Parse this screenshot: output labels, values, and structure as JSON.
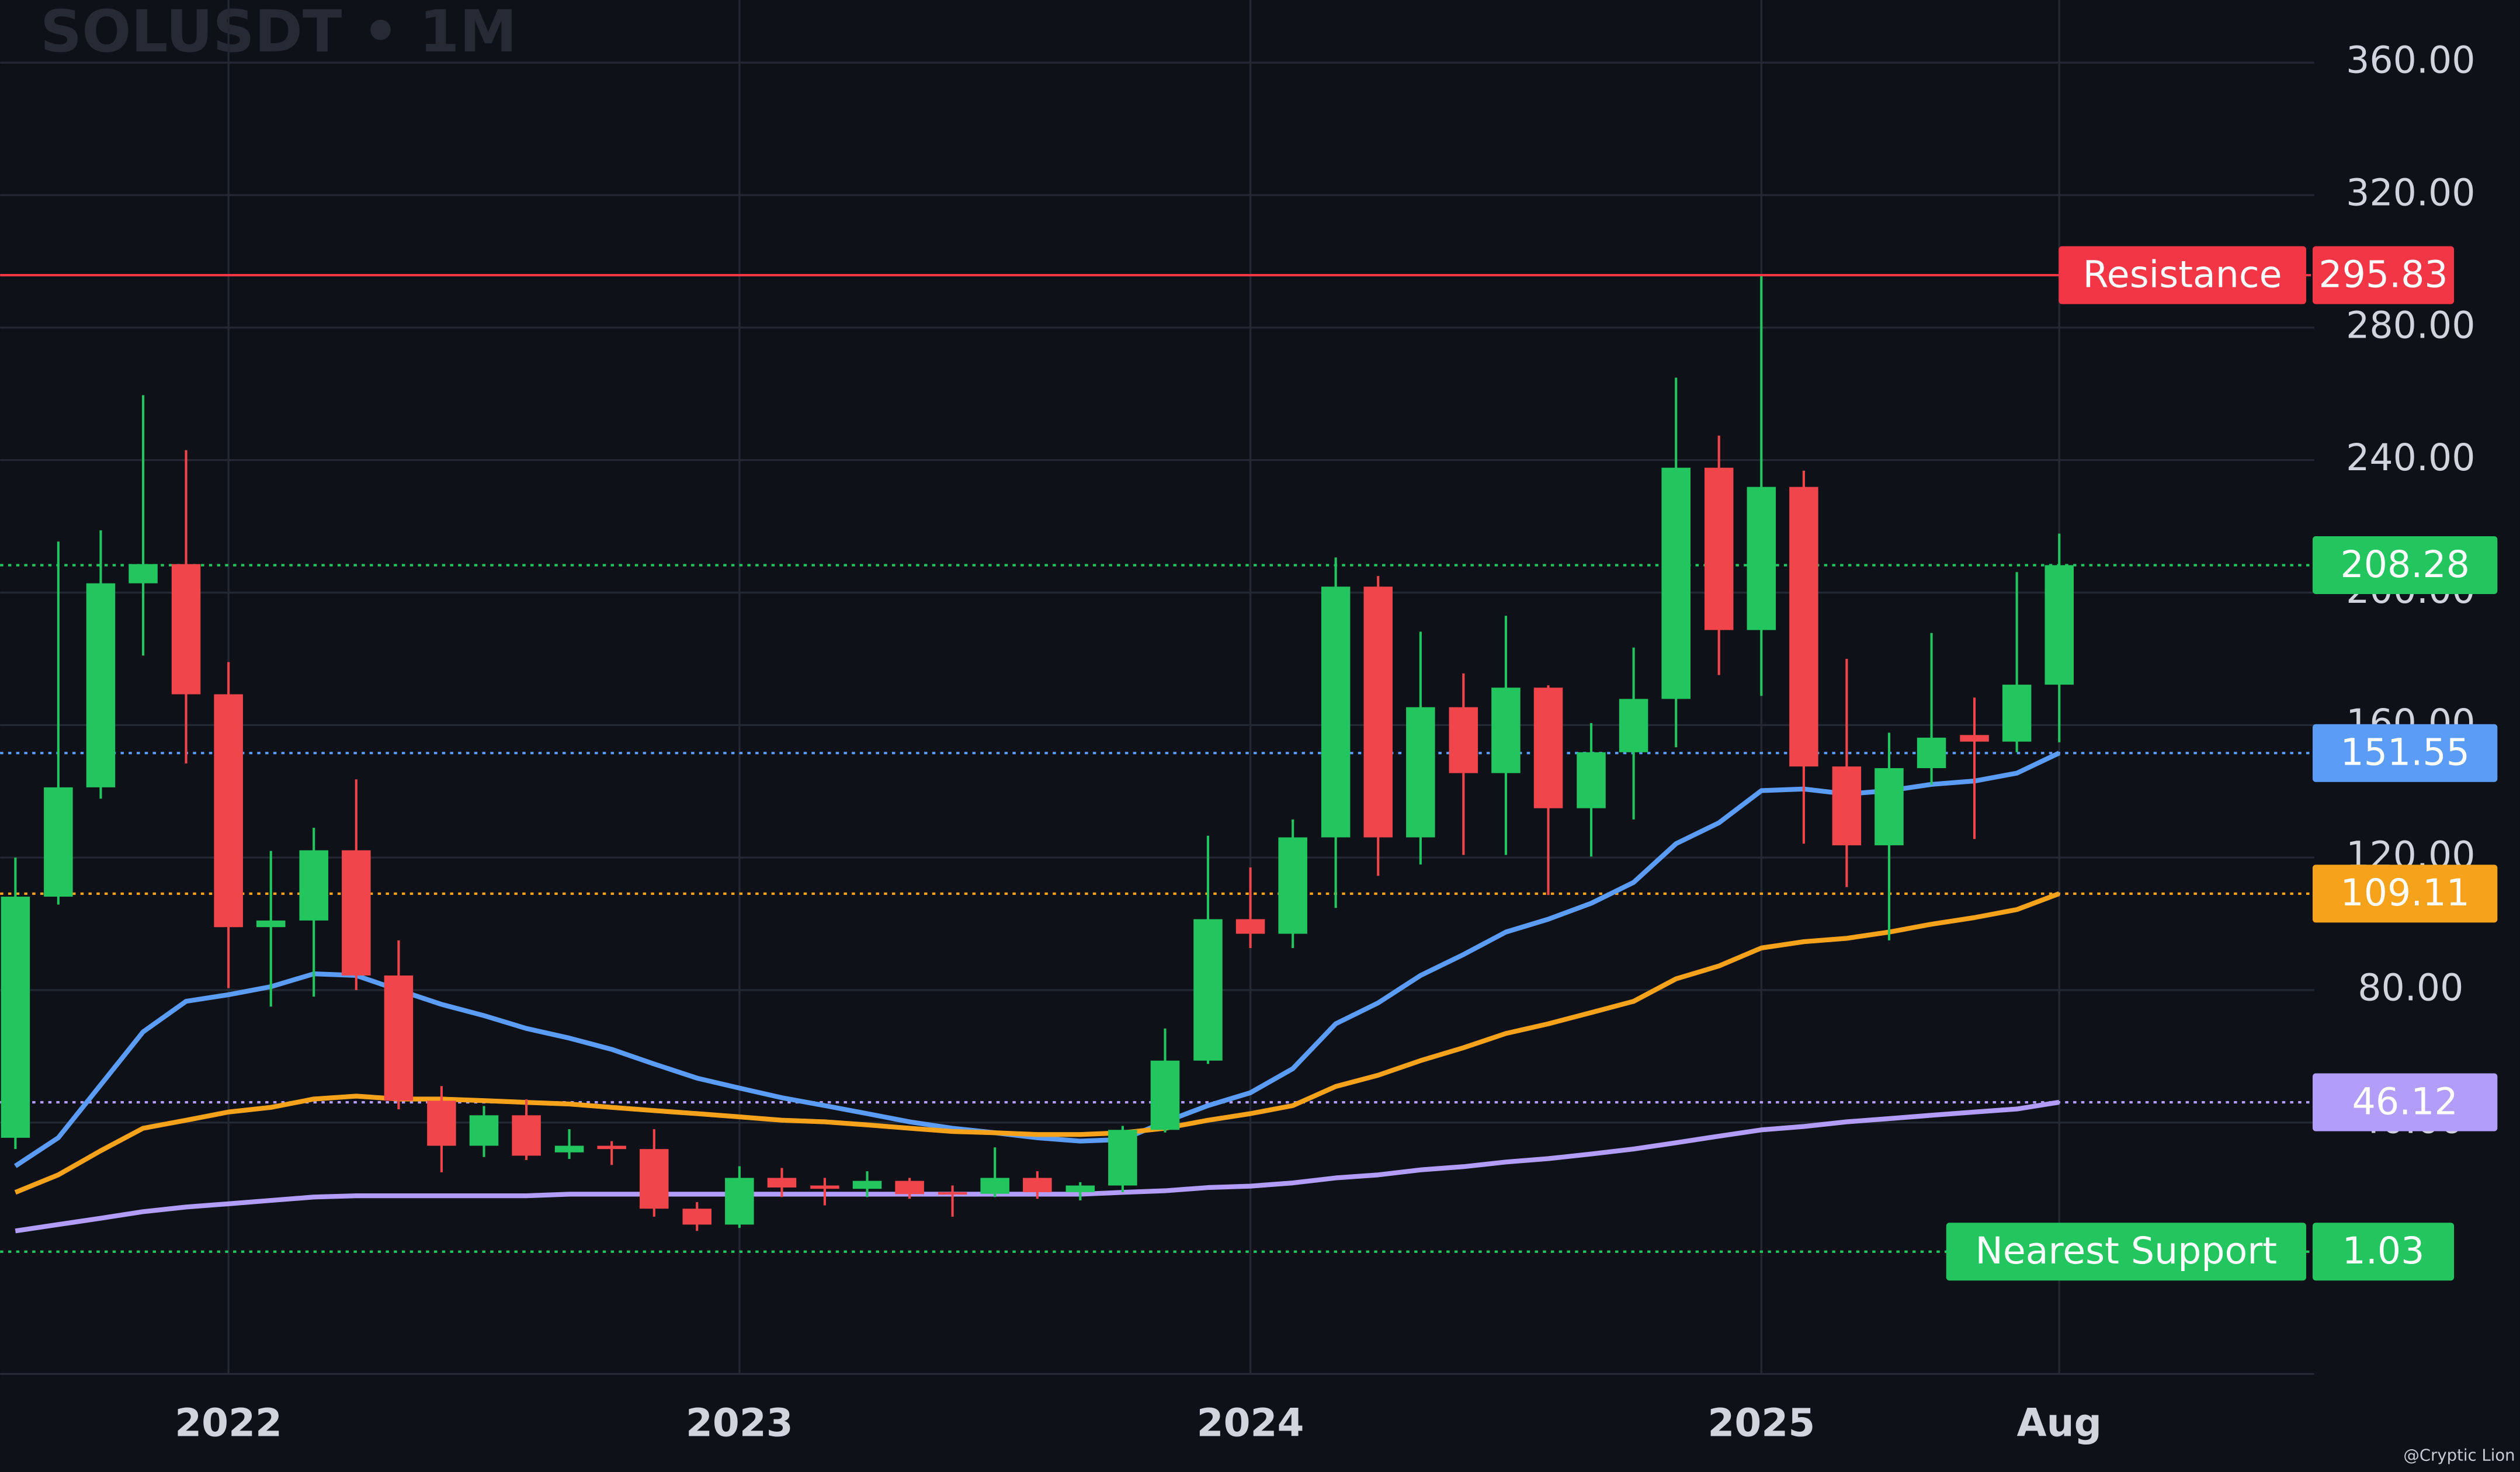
{
  "chart_data": {
    "type": "candlestick",
    "title": "SOLUSDT • 1M",
    "x": [
      2021.583,
      2021.667,
      2021.75,
      2021.833,
      2021.917,
      2022,
      2022.083,
      2022.167,
      2022.25,
      2022.333,
      2022.417,
      2022.5,
      2022.583,
      2022.667,
      2022.75,
      2022.833,
      2022.917,
      2023,
      2023.083,
      2023.167,
      2023.25,
      2023.333,
      2023.417,
      2023.5,
      2023.583,
      2023.667,
      2023.75,
      2023.833,
      2023.917,
      2024,
      2024.083,
      2024.167,
      2024.25,
      2024.333,
      2024.417,
      2024.5,
      2024.583,
      2024.667,
      2024.75,
      2024.833,
      2024.917,
      2025,
      2025.083,
      2025.167,
      2025.25,
      2025.333,
      2025.417,
      2025.5,
      2025.583
    ],
    "open": [
      35.4,
      108.2,
      141.2,
      202.8,
      208.6,
      169.3,
      99,
      101,
      122.2,
      84.4,
      46.6,
      33,
      42.2,
      31,
      33,
      32,
      14,
      9.2,
      23.3,
      21,
      20,
      22.4,
      19,
      18.5,
      23.3,
      19,
      21,
      37.8,
      58.7,
      101.4,
      97,
      126.1,
      201.8,
      126.1,
      165.4,
      145.5,
      171.3,
      134.9,
      151.8,
      167.9,
      237.7,
      188.7,
      231.9,
      147.5,
      123.7,
      147,
      157,
      155,
      172.2
    ],
    "high": [
      120,
      215.4,
      218.8,
      259.6,
      243,
      179,
      122,
      129,
      143.6,
      95,
      51,
      45,
      47,
      38,
      34.4,
      38,
      16,
      26.8,
      26.3,
      23.3,
      25.3,
      23.3,
      21,
      32.5,
      25.3,
      22,
      39,
      68.4,
      126.6,
      117,
      131.5,
      210.6,
      205,
      188.2,
      175.6,
      193,
      172,
      160.6,
      183.4,
      264.9,
      247.4,
      295.5,
      236.8,
      180,
      157.7,
      187.8,
      168.3,
      206.2,
      217.8
    ],
    "low": [
      32,
      105.8,
      137.8,
      181,
      148.4,
      80.6,
      75,
      78,
      80,
      44,
      25,
      29.6,
      28.7,
      29,
      27.2,
      11.6,
      7.3,
      8.2,
      17.5,
      15,
      17.5,
      17,
      11.6,
      17.5,
      17,
      16.5,
      19,
      37,
      57.7,
      92.7,
      92.7,
      104.8,
      114.5,
      117.9,
      120.8,
      120.8,
      108.7,
      120.3,
      131.5,
      153.3,
      175.1,
      168.8,
      124.2,
      111.1,
      95,
      142,
      125.6,
      151.8,
      154.8
    ],
    "close": [
      108.2,
      141.2,
      202.8,
      208.6,
      169.3,
      99,
      101,
      122.2,
      84.4,
      46.6,
      33,
      42.2,
      30,
      33,
      32,
      14,
      9.2,
      23.3,
      20.4,
      20,
      22.4,
      18.4,
      18.5,
      23.3,
      19,
      21,
      37.8,
      58.7,
      101.4,
      97,
      126.1,
      201.8,
      126.1,
      165.4,
      145.5,
      171.3,
      134.9,
      151.8,
      167.9,
      237.7,
      188.7,
      231.9,
      147.5,
      123.7,
      147,
      156.2,
      155,
      172.2,
      208.28
    ],
    "up_color": "#22c55e",
    "down_color": "#f0454a",
    "series": [
      {
        "color": "#5b9cf6",
        "values": [
          26.9,
          35.4,
          51.4,
          67.4,
          76.6,
          78.6,
          81,
          84.9,
          84.4,
          80,
          75.7,
          72.3,
          68.4,
          65.5,
          62.1,
          57.7,
          53.4,
          50.4,
          47.5,
          45.1,
          42.7,
          40.2,
          38.3,
          36.9,
          35.4,
          34.4,
          34.9,
          40.2,
          45.1,
          49,
          56.3,
          69.8,
          76.1,
          84.4,
          90.7,
          97.5,
          101.4,
          106.2,
          112.5,
          124.2,
          130.5,
          140.2,
          140.7,
          139.2,
          140.2,
          142.1,
          143.1,
          145.5,
          151.55
        ]
      },
      {
        "color": "#f7a21b",
        "values": [
          18.9,
          24.2,
          31.5,
          38.3,
          40.7,
          43.2,
          44.6,
          47.1,
          48,
          47.1,
          47.1,
          46.6,
          46.1,
          45.6,
          44.6,
          43.6,
          42.7,
          41.7,
          40.7,
          40.2,
          39.3,
          38.3,
          37.3,
          36.9,
          36.4,
          36.4,
          36.9,
          38.3,
          40.7,
          42.7,
          45.1,
          50.9,
          54.3,
          58.7,
          62.6,
          66.9,
          69.8,
          73.2,
          76.6,
          83.4,
          87.3,
          92.7,
          94.6,
          95.6,
          97.5,
          99.9,
          101.9,
          104.3,
          109.11
        ]
      },
      {
        "color": "#b39dfa",
        "values": [
          7.3,
          9.2,
          11.1,
          13.1,
          14.5,
          15.5,
          16.5,
          17.5,
          17.9,
          17.9,
          17.9,
          17.9,
          17.9,
          18.4,
          18.4,
          18.4,
          18.4,
          18.4,
          18.4,
          18.4,
          18.4,
          18.4,
          18.4,
          18.4,
          18.4,
          18.4,
          18.9,
          19.4,
          20.4,
          20.8,
          21.8,
          23.3,
          24.2,
          25.7,
          26.7,
          28.1,
          29.1,
          30.5,
          32,
          33.9,
          35.9,
          37.8,
          38.8,
          40.2,
          41.2,
          42.2,
          43.2,
          44.1,
          46.12
        ]
      }
    ],
    "lines": [
      {
        "value": 295.83,
        "label": "Resistance",
        "color": "#f23645",
        "dashed": false
      },
      {
        "value": 208.28,
        "color": "#22c55e",
        "dashed": true
      },
      {
        "value": 151.55,
        "color": "#5b9cf6",
        "dashed": true
      },
      {
        "value": 109.11,
        "color": "#f7a21b",
        "dashed": true
      },
      {
        "value": 46.12,
        "color": "#b39dfa",
        "dashed": true
      },
      {
        "value": 1.03,
        "label": "Nearest Support",
        "color": "#22c55e",
        "dashed": true
      }
    ],
    "xlim": [
      2021.553,
      2026.082
    ],
    "xticks": [
      2022,
      2023,
      2024,
      2025,
      {
        "value": 2025.583,
        "label": "Aug"
      }
    ],
    "ylim": [
      -35.9,
      378.9
    ],
    "yticks": [
      {
        "value": 40,
        "label": "40.00"
      },
      {
        "value": 80,
        "label": "80.00"
      },
      {
        "value": 120,
        "label": "120.00"
      },
      {
        "value": 160,
        "label": "160.00"
      },
      {
        "value": 200,
        "label": "200.00"
      },
      {
        "value": 240,
        "label": "240.00"
      },
      {
        "value": 280,
        "label": "280.00"
      },
      {
        "value": 320,
        "label": "320.00"
      },
      {
        "value": 360,
        "label": "360.00"
      }
    ],
    "grid": true
  },
  "watermark": "@Cryptic Lion"
}
